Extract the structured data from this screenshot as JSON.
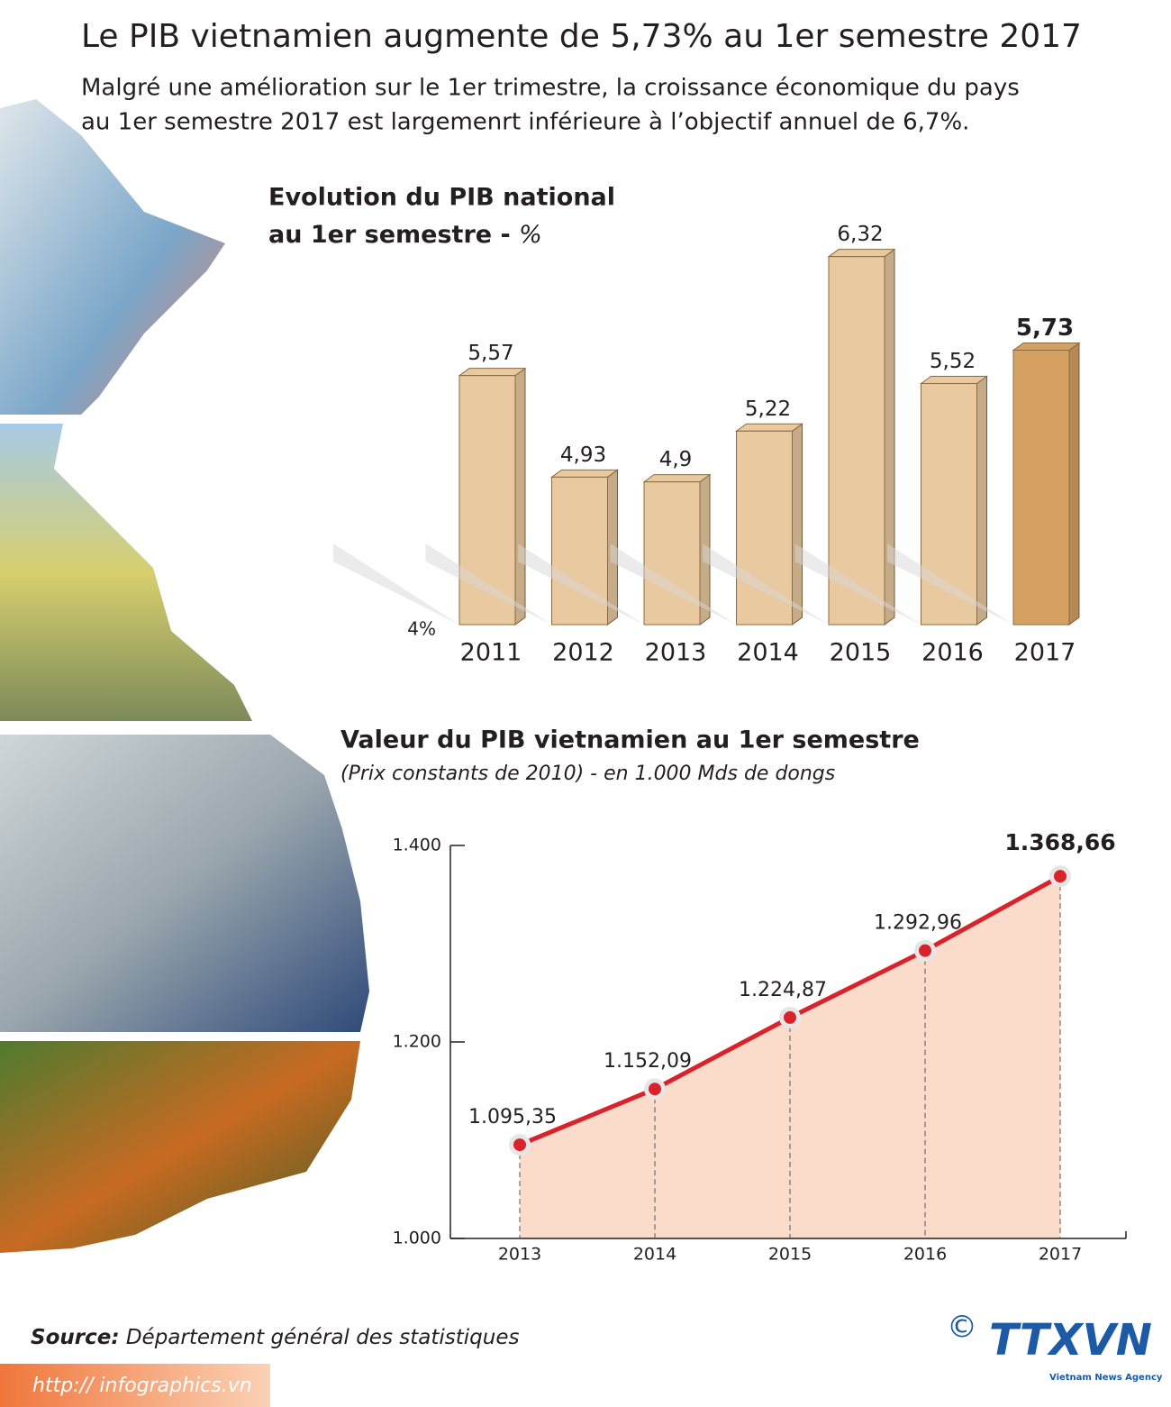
{
  "title": "Le PIB vietnamien augmente de 5,73% au 1er semestre 2017",
  "subtitle": [
    "Malgré une amélioration sur le 1er trimestre, la croissance économique du pays",
    "au 1er semestre 2017 est largemenrt inférieure à l’objectif annuel de 6,7%."
  ],
  "source_label": "Source:",
  "source": "Département général des statistiques",
  "url": "http:// infographics.vn",
  "logo": {
    "mark": "©",
    "name": "TTXVN",
    "tagline": "Vietnam News Agency"
  },
  "chart_data": [
    {
      "type": "bar3d",
      "title": [
        "Evolution du PIB national",
        "au 1er semestre -"
      ],
      "unit": "%",
      "categories": [
        "2011",
        "2012",
        "2013",
        "2014",
        "2015",
        "2016",
        "2017"
      ],
      "values": [
        5.57,
        4.93,
        4.9,
        5.22,
        6.32,
        5.52,
        5.73
      ],
      "value_labels": [
        "5,57",
        "4,93",
        "4,9",
        "5,22",
        "6,32",
        "5,52",
        "5,73"
      ],
      "color": "#e9c9a0",
      "highlight_color": "#d5a163",
      "highlight_index": 6,
      "ylim": [
        4,
        6.5
      ],
      "yticks": [
        {
          "value": 4,
          "label": "4%"
        }
      ]
    },
    {
      "type": "line",
      "title": "Valeur du PIB vietnamien au 1er semestre",
      "subtitle": "(Prix constants de 2010) - en 1.000 Mds de dongs",
      "categories": [
        "2013",
        "2014",
        "2015",
        "2016",
        "2017"
      ],
      "values": [
        1095.35,
        1152.09,
        1224.87,
        1292.96,
        1368.66
      ],
      "value_labels": [
        "1.095,35",
        "1.152,09",
        "1.224,87",
        "1.292,96",
        "1.368,66"
      ],
      "color": "#d8232a",
      "area_color": "#fbdccb",
      "highlight_index": 4,
      "ylim": [
        1000,
        1400
      ],
      "yticks": [
        {
          "value": 1000,
          "label": "1.000"
        },
        {
          "value": 1200,
          "label": "1.200"
        },
        {
          "value": 1400,
          "label": "1.400"
        }
      ]
    }
  ]
}
